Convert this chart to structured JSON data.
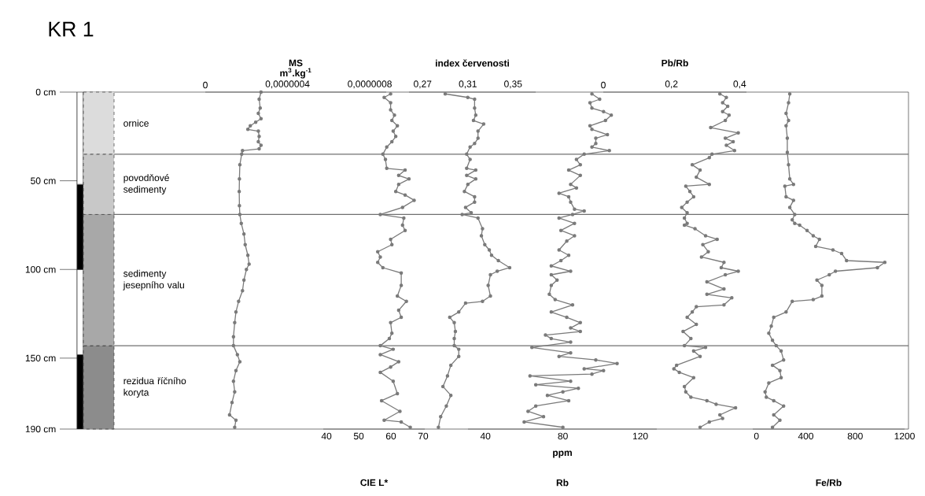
{
  "chart_data": [
    {
      "type": "bar",
      "stacked": true,
      "title": "KR 1",
      "categories": [
        null
      ],
      "ylim": [
        190,
        0
      ],
      "yticks": [
        {
          "value": 0,
          "label": "0 cm"
        },
        {
          "value": 50,
          "label": "50 cm"
        },
        {
          "value": 100,
          "label": "100 cm"
        },
        {
          "value": 150,
          "label": "150 cm"
        },
        {
          "value": 190,
          "label": "190 cm"
        }
      ],
      "tick_labels": "y",
      "series": [
        {
          "color": "#ffffff",
          "values": [
            52
          ]
        },
        {
          "color": "#000000",
          "values": [
            48
          ]
        },
        {
          "color": "#ffffff",
          "values": [
            48
          ]
        },
        {
          "color": "#000000",
          "values": [
            42
          ]
        }
      ]
    },
    {
      "type": "bar",
      "stacked": true,
      "categories": [
        null
      ],
      "ylim": [
        190,
        0
      ],
      "tick_labels": false,
      "series": [
        {
          "name": "ornice",
          "color": "#dcdcdc",
          "values": [
            35
          ]
        },
        {
          "name": "povodňové sedimenty",
          "color": "#c8c8c8",
          "values": [
            34
          ]
        },
        {
          "name": "sedimenty jesepního valu",
          "color": "#a8a8a8",
          "values": [
            74
          ]
        },
        {
          "name": "rezidua říčního koryta",
          "color": "#8c8c8c",
          "values": [
            47
          ]
        }
      ],
      "ref_lines": [
        {
          "axis": "y",
          "value": 35,
          "color": "#707070"
        },
        {
          "axis": "y",
          "value": 69,
          "color": "#707070"
        },
        {
          "axis": "y",
          "value": 143,
          "color": "#707070"
        }
      ]
    },
    {
      "type": "line",
      "xlabel": "MS",
      "annotations": [
        "m$^{3}$.kg$^{-1}$"
      ],
      "xlim": [
        0,
        8.8e-07
      ],
      "xticks": [
        0,
        {
          "value": 4e-07,
          "label": "0,0000004"
        },
        {
          "value": 8e-07,
          "label": "0,0000008"
        }
      ],
      "ylim": [
        190,
        0
      ],
      "tick_labels": "x",
      "marker": "circle",
      "line_style": "solid",
      "series": [
        {
          "color": "#7a7a7a",
          "x": [
            2.71e-07,
            2.62e-07,
            2.67e-07,
            2.58e-07,
            2.71e-07,
            2.45e-07,
            2.19e-07,
            2.07e-07,
            2.58e-07,
            2.62e-07,
            2.58e-07,
            2.71e-07,
            2.62e-07,
            1.81e-07,
            1.77e-07,
            1.68e-07,
            1.66e-07,
            1.65e-07,
            1.66e-07,
            1.68e-07,
            1.75e-07,
            1.88e-07,
            1.94e-07,
            2.07e-07,
            2.13e-07,
            2e-07,
            1.88e-07,
            1.81e-07,
            1.62e-07,
            1.49e-07,
            1.43e-07,
            1.37e-07,
            1.37e-07,
            1.56e-07,
            1.68e-07,
            1.49e-07,
            1.37e-07,
            1.43e-07,
            1.3e-07,
            1.18e-07,
            1.49e-07,
            1.43e-07
          ],
          "values": [
            0,
            4,
            9,
            12,
            15,
            17,
            19,
            21,
            22,
            25,
            28,
            30,
            32,
            33,
            35,
            41,
            49,
            56,
            64,
            69,
            74,
            80,
            86,
            92,
            97,
            100,
            106,
            112,
            118,
            124,
            130,
            138,
            143,
            148,
            152,
            157,
            163,
            169,
            175,
            182,
            185,
            189
          ]
        }
      ]
    },
    {
      "type": "line",
      "xlabel": "CIE L*",
      "xlim": [
        39,
        70.5
      ],
      "xticks": [
        40,
        50,
        60,
        70
      ],
      "ylim": [
        190,
        0
      ],
      "tick_labels": "x",
      "marker": "circle",
      "line_style": "solid",
      "series": [
        {
          "color": "#7a7a7a",
          "x": [
            59.9,
            57.9,
            59.9,
            59.9,
            61.1,
            60.3,
            62.0,
            60.7,
            61.5,
            60.3,
            58.7,
            57.5,
            58.3,
            58.7,
            64.4,
            62.4,
            65.6,
            62.4,
            61.5,
            64.4,
            67.2,
            63.6,
            56.7,
            64.0,
            63.6,
            64.4,
            59.9,
            60.3,
            55.9,
            56.7,
            55.9,
            57.5,
            63.2,
            63.2,
            62.0,
            64.8,
            62.4,
            63.2,
            59.9,
            60.3,
            59.5,
            56.7,
            60.7,
            56.7,
            62.4,
            59.9,
            56.7,
            60.7,
            62.0,
            57.1,
            62.8,
            57.9,
            63.2,
            66.0
          ],
          "values": [
            1,
            3,
            6,
            10,
            13,
            16,
            19,
            22,
            25,
            28,
            31,
            35,
            38,
            43,
            44,
            47,
            49,
            52,
            56,
            58,
            61,
            65,
            69,
            71,
            75,
            78,
            83,
            86,
            90,
            93,
            96,
            99,
            102,
            109,
            115,
            118,
            123,
            127,
            130,
            136,
            139,
            143,
            145,
            148,
            152,
            155,
            158,
            163,
            170,
            174,
            180,
            185,
            186,
            189
          ]
        }
      ]
    },
    {
      "type": "line",
      "xlabel": "index červenosti",
      "xlim": [
        0.258,
        0.37
      ],
      "xticks": [
        {
          "value": 0.27,
          "label": "0,27"
        },
        {
          "value": 0.31,
          "label": "0,31"
        },
        {
          "value": 0.35,
          "label": "0,35"
        }
      ],
      "ylim": [
        190,
        0
      ],
      "tick_labels": "x",
      "marker": "circle",
      "line_style": "solid",
      "series": [
        {
          "color": "#7a7a7a",
          "x": [
            0.29,
            0.31,
            0.316,
            0.316,
            0.317,
            0.315,
            0.324,
            0.319,
            0.319,
            0.316,
            0.312,
            0.309,
            0.312,
            0.309,
            0.317,
            0.309,
            0.317,
            0.31,
            0.307,
            0.316,
            0.316,
            0.308,
            0.313,
            0.305,
            0.319,
            0.323,
            0.322,
            0.325,
            0.329,
            0.331,
            0.337,
            0.347,
            0.336,
            0.33,
            0.328,
            0.33,
            0.323,
            0.308,
            0.302,
            0.294,
            0.298,
            0.299,
            0.298,
            0.298,
            0.302,
            0.302,
            0.295,
            0.292,
            0.288,
            0.295,
            0.291,
            0.286,
            0.284
          ],
          "values": [
            1,
            3,
            4,
            9,
            13,
            16,
            18,
            22,
            26,
            29,
            31,
            35,
            38,
            43,
            44,
            47,
            49,
            52,
            56,
            59,
            62,
            65,
            68,
            69,
            71,
            77,
            81,
            86,
            89,
            92,
            95,
            99,
            101,
            103,
            109,
            115,
            118,
            119,
            124,
            127,
            130,
            135,
            139,
            143,
            145,
            149,
            154,
            160,
            166,
            171,
            177,
            183,
            189
          ]
        }
      ]
    },
    {
      "type": "line",
      "xlabel": "Rb",
      "annotations": [
        "ppm"
      ],
      "xlim": [
        31,
        128.5
      ],
      "xticks": [
        40,
        80,
        120
      ],
      "ylim": [
        190,
        0
      ],
      "tick_labels": "x",
      "marker": "circle",
      "line_style": "solid",
      "series": [
        {
          "color": "#7a7a7a",
          "x": [
            95,
            99,
            94,
            95,
            101,
            105,
            102,
            94,
            95,
            103,
            97,
            97,
            95,
            104,
            91,
            87,
            89,
            83,
            89,
            84,
            87,
            78,
            83,
            84,
            86,
            91,
            85,
            78,
            86,
            79,
            86,
            82,
            78,
            83,
            79,
            74,
            84,
            74,
            77,
            74,
            73,
            76,
            85,
            74,
            82,
            89,
            84,
            89,
            71,
            74,
            84,
            64,
            84,
            78,
            97,
            108,
            91,
            101,
            95,
            63,
            84,
            66,
            88,
            80,
            72,
            83,
            66,
            62,
            70,
            60,
            80
          ],
          "values": [
            1,
            4,
            6,
            9,
            11,
            13,
            16,
            19,
            21,
            24,
            26,
            29,
            31,
            33,
            35,
            38,
            41,
            44,
            47,
            52,
            54,
            57,
            59,
            62,
            66,
            67,
            69,
            71,
            74,
            78,
            81,
            84,
            89,
            92,
            95,
            98,
            101,
            103,
            106,
            109,
            114,
            117,
            120,
            124,
            127,
            130,
            133,
            135,
            137,
            139,
            141,
            144,
            147,
            149,
            151,
            153,
            156,
            157,
            159,
            160,
            163,
            165,
            167,
            169,
            171,
            174,
            177,
            180,
            183,
            186,
            189
          ]
        }
      ]
    },
    {
      "type": "line",
      "xlabel": "Pb/Rb",
      "xlim": [
        0,
        0.42
      ],
      "xticks": [
        0,
        {
          "value": 0.2,
          "label": "0,2"
        },
        {
          "value": 0.4,
          "label": "0,4"
        }
      ],
      "ylim": [
        190,
        0
      ],
      "tick_labels": "x",
      "marker": "circle",
      "line_style": "solid",
      "series": [
        {
          "color": "#7a7a7a",
          "x": [
            0.342,
            0.361,
            0.35,
            0.365,
            0.35,
            0.369,
            0.358,
            0.315,
            0.396,
            0.358,
            0.381,
            0.361,
            0.385,
            0.319,
            0.311,
            0.261,
            0.284,
            0.273,
            0.311,
            0.242,
            0.254,
            0.265,
            0.246,
            0.23,
            0.246,
            0.238,
            0.246,
            0.238,
            0.269,
            0.3,
            0.334,
            0.292,
            0.308,
            0.288,
            0.354,
            0.346,
            0.396,
            0.358,
            0.304,
            0.354,
            0.304,
            0.377,
            0.354,
            0.273,
            0.261,
            0.246,
            0.273,
            0.234,
            0.257,
            0.238,
            0.3,
            0.265,
            0.284,
            0.215,
            0.207,
            0.223,
            0.265,
            0.238,
            0.242,
            0.257,
            0.304,
            0.331,
            0.388,
            0.342,
            0.35,
            0.311,
            0.284
          ],
          "values": [
            1,
            3,
            6,
            8,
            11,
            13,
            16,
            20,
            23,
            26,
            28,
            30,
            33,
            35,
            37,
            41,
            44,
            48,
            52,
            53,
            56,
            59,
            62,
            65,
            68,
            71,
            74,
            75,
            77,
            81,
            83,
            86,
            90,
            93,
            96,
            99,
            101,
            103,
            107,
            111,
            114,
            116,
            120,
            121,
            124,
            127,
            131,
            135,
            139,
            143,
            144,
            146,
            149,
            154,
            156,
            158,
            161,
            166,
            169,
            172,
            174,
            176,
            178,
            182,
            184,
            186,
            189
          ]
        }
      ]
    },
    {
      "type": "line",
      "xlabel": "Fe/Rb",
      "xlim": [
        -30,
        1200
      ],
      "xticks": [
        0,
        400,
        800,
        1200
      ],
      "ylim": [
        190,
        0
      ],
      "tick_labels": "x",
      "marker": "circle",
      "line_style": "solid",
      "series": [
        {
          "color": "#7a7a7a",
          "x": [
            270,
            260,
            240,
            260,
            240,
            250,
            250,
            260,
            270,
            300,
            230,
            240,
            300,
            270,
            310,
            290,
            310,
            350,
            410,
            460,
            510,
            480,
            620,
            690,
            730,
            1040,
            980,
            640,
            590,
            490,
            530,
            530,
            460,
            290,
            240,
            140,
            120,
            100,
            130,
            160,
            200,
            220,
            130,
            190,
            200,
            100,
            70,
            80,
            140,
            220,
            140,
            190,
            130
          ],
          "values": [
            1,
            6,
            12,
            16,
            19,
            26,
            34,
            41,
            49,
            52,
            53,
            59,
            61,
            65,
            69,
            72,
            74,
            75,
            78,
            81,
            83,
            87,
            89,
            91,
            95,
            96,
            99,
            101,
            103,
            106,
            109,
            115,
            117,
            118,
            124,
            127,
            132,
            136,
            140,
            143,
            146,
            151,
            154,
            157,
            161,
            164,
            169,
            172,
            174,
            177,
            182,
            185,
            189
          ]
        }
      ]
    }
  ]
}
